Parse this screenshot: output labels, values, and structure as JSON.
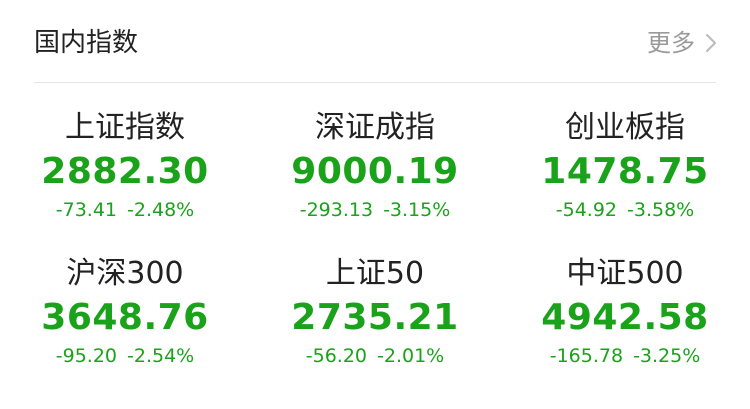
{
  "header": {
    "title": "国内指数",
    "more_label": "更多"
  },
  "colors": {
    "down": "#1aa31a",
    "title": "#222222",
    "muted": "#9a9a9a"
  },
  "indices": [
    {
      "name": "上证指数",
      "value": "2882.30",
      "change": "-73.41",
      "change_pct": "-2.48%"
    },
    {
      "name": "深证成指",
      "value": "9000.19",
      "change": "-293.13",
      "change_pct": "-3.15%"
    },
    {
      "name": "创业板指",
      "value": "1478.75",
      "change": "-54.92",
      "change_pct": "-3.58%"
    },
    {
      "name": "沪深300",
      "value": "3648.76",
      "change": "-95.20",
      "change_pct": "-2.54%"
    },
    {
      "name": "上证50",
      "value": "2735.21",
      "change": "-56.20",
      "change_pct": "-2.01%"
    },
    {
      "name": "中证500",
      "value": "4942.58",
      "change": "-165.78",
      "change_pct": "-3.25%"
    }
  ]
}
